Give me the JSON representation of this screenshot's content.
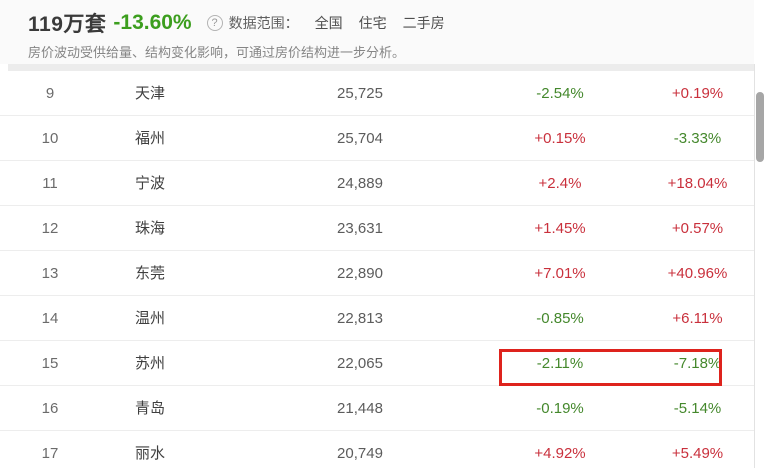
{
  "header": {
    "total": "119万套",
    "change": "-13.60%",
    "help_icon": "?",
    "scope_label": "数据范围：",
    "scope_items": [
      "全国",
      "住宅",
      "二手房"
    ],
    "note": "房价波动受供给量、结构变化影响，可通过房价结构进一步分析。"
  },
  "colors": {
    "up_red": "#c9303c",
    "down_green": "#44882c",
    "header_change_green": "#3c9e1e",
    "annotation_red": "#de231d"
  },
  "table": {
    "rows": [
      {
        "rank": "9",
        "city": "天津",
        "price": "25,725",
        "pct1": "-2.54%",
        "pct2": "+0.19%"
      },
      {
        "rank": "10",
        "city": "福州",
        "price": "25,704",
        "pct1": "+0.15%",
        "pct2": "-3.33%"
      },
      {
        "rank": "11",
        "city": "宁波",
        "price": "24,889",
        "pct1": "+2.4%",
        "pct2": "+18.04%"
      },
      {
        "rank": "12",
        "city": "珠海",
        "price": "23,631",
        "pct1": "+1.45%",
        "pct2": "+0.57%"
      },
      {
        "rank": "13",
        "city": "东莞",
        "price": "22,890",
        "pct1": "+7.01%",
        "pct2": "+40.96%"
      },
      {
        "rank": "14",
        "city": "温州",
        "price": "22,813",
        "pct1": "-0.85%",
        "pct2": "+6.11%"
      },
      {
        "rank": "15",
        "city": "苏州",
        "price": "22,065",
        "pct1": "-2.11%",
        "pct2": "-7.18%"
      },
      {
        "rank": "16",
        "city": "青岛",
        "price": "21,448",
        "pct1": "-0.19%",
        "pct2": "-5.14%"
      },
      {
        "rank": "17",
        "city": "丽水",
        "price": "20,749",
        "pct1": "+4.92%",
        "pct2": "+5.49%"
      }
    ],
    "highlighted_city": "苏州"
  }
}
